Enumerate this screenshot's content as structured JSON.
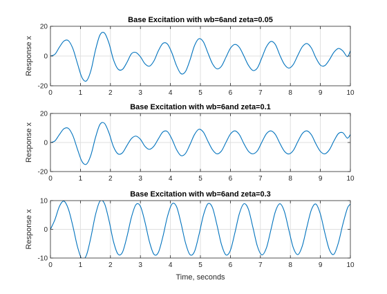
{
  "colors": {
    "line": "#0072BD",
    "axis": "#262626",
    "grid": "#dfdfdf",
    "background": "#ffffff"
  },
  "xlabel": "Time, seconds",
  "chart_data": [
    {
      "type": "line",
      "title": "Base Excitation with wb=6and zeta=0.05",
      "xlabel": "",
      "ylabel": "Response x",
      "xlim": [
        0,
        10
      ],
      "ylim": [
        -20,
        20
      ],
      "xticks": [
        0,
        1,
        2,
        3,
        4,
        5,
        6,
        7,
        8,
        9,
        10
      ],
      "yticks": [
        -20,
        0,
        20
      ],
      "grid": true,
      "series": [
        {
          "x": [
            0,
            0.15,
            0.3,
            0.45,
            0.6,
            0.75,
            0.9,
            1.05,
            1.2,
            1.35,
            1.5,
            1.65,
            1.8,
            1.95,
            2.1,
            2.25,
            2.4,
            2.55,
            2.7,
            2.85,
            3.0,
            3.15,
            3.3,
            3.45,
            3.6,
            3.75,
            3.9,
            4.05,
            4.2,
            4.35,
            4.5,
            4.65,
            4.8,
            4.95,
            5.1,
            5.25,
            5.4,
            5.55,
            5.7,
            5.85,
            6.0,
            6.15,
            6.3,
            6.45,
            6.6,
            6.75,
            6.9,
            7.05,
            7.2,
            7.35,
            7.5,
            7.65,
            7.8,
            7.95,
            8.1,
            8.25,
            8.4,
            8.55,
            8.7,
            8.85,
            9.0,
            9.15,
            9.3,
            9.45,
            9.6,
            9.75,
            9.9,
            10.0
          ],
          "y": [
            0,
            1.2,
            6,
            10.1,
            10.3,
            4.9,
            -5,
            -14.4,
            -16.7,
            -9.7,
            3.9,
            14.1,
            15.5,
            8.7,
            -2.4,
            -8.7,
            -9.0,
            -4.3,
            1.5,
            2.4,
            -0.5,
            -5.2,
            -6.8,
            -3.3,
            3.6,
            8.5,
            8.1,
            2.1,
            -6.3,
            -11.8,
            -10.5,
            -2.8,
            6.8,
            11.6,
            9.5,
            2.1,
            -5.1,
            -8.6,
            -6.9,
            -0.9,
            5.2,
            7.8,
            5.8,
            0,
            -6.2,
            -9.7,
            -8.0,
            -1.1,
            6.2,
            9.8,
            7.7,
            0.5,
            -5.6,
            -8.1,
            -5.6,
            0.6,
            6.3,
            8.4,
            5.4,
            -1.2,
            -6.1,
            -6.4,
            -2.5,
            2.5,
            5.1,
            3.4,
            -0.4,
            3.5
          ]
        }
      ]
    },
    {
      "type": "line",
      "title": "Base Excitation with wb=6and zeta=0.1",
      "xlabel": "",
      "ylabel": "Response x",
      "xlim": [
        0,
        10
      ],
      "ylim": [
        -20,
        20
      ],
      "xticks": [
        0,
        1,
        2,
        3,
        4,
        5,
        6,
        7,
        8,
        9,
        10
      ],
      "yticks": [
        -20,
        0,
        20
      ],
      "grid": true,
      "series": [
        {
          "x": [
            0,
            0.15,
            0.3,
            0.45,
            0.6,
            0.75,
            0.9,
            1.05,
            1.2,
            1.35,
            1.5,
            1.65,
            1.8,
            1.95,
            2.1,
            2.25,
            2.4,
            2.55,
            2.7,
            2.85,
            3.0,
            3.15,
            3.3,
            3.45,
            3.6,
            3.75,
            3.9,
            4.05,
            4.2,
            4.35,
            4.5,
            4.65,
            4.8,
            4.95,
            5.1,
            5.25,
            5.4,
            5.55,
            5.7,
            5.85,
            6.0,
            6.15,
            6.3,
            6.45,
            6.6,
            6.75,
            6.9,
            7.05,
            7.2,
            7.35,
            7.5,
            7.65,
            7.8,
            7.95,
            8.1,
            8.25,
            8.4,
            8.55,
            8.7,
            8.85,
            9.0,
            9.15,
            9.3,
            9.45,
            9.6,
            9.75,
            9.9,
            10.0
          ],
          "y": [
            0,
            1.1,
            5.5,
            9.5,
            9.7,
            4.6,
            -4.6,
            -13,
            -14.9,
            -8.6,
            3.3,
            12.4,
            13.2,
            6.7,
            -2.8,
            -7.8,
            -7.1,
            -2.1,
            2.7,
            4.4,
            2.2,
            -2.6,
            -4.7,
            -2.5,
            2.6,
            7.3,
            7.5,
            2.4,
            -4.7,
            -9.0,
            -7.6,
            -1.5,
            5.4,
            9.1,
            7.1,
            0.9,
            -4.9,
            -7.8,
            -5.9,
            0,
            5.8,
            8.0,
            5.4,
            -0.8,
            -6.0,
            -7.8,
            -5.7,
            0.3,
            6.0,
            8.0,
            5.5,
            -0.6,
            -6.0,
            -7.9,
            -5.4,
            0.7,
            6.2,
            8.0,
            5.3,
            -0.9,
            -6.1,
            -7.8,
            -5.0,
            1.0,
            6.1,
            6.7,
            3.0,
            5.5
          ]
        }
      ]
    },
    {
      "type": "line",
      "title": "Base Excitation with wb=6and zeta=0.3",
      "xlabel": "Time, seconds",
      "ylabel": "Response x",
      "xlim": [
        0,
        10
      ],
      "ylim": [
        -10,
        10
      ],
      "xticks": [
        0,
        1,
        2,
        3,
        4,
        5,
        6,
        7,
        8,
        9,
        10
      ],
      "yticks": [
        -10,
        0,
        10
      ],
      "grid": true,
      "series": [
        {
          "x": [
            0,
            0.15,
            0.3,
            0.45,
            0.6,
            0.75,
            0.9,
            1.05,
            1.2,
            1.35,
            1.5,
            1.65,
            1.8,
            1.95,
            2.1,
            2.25,
            2.4,
            2.55,
            2.7,
            2.85,
            3.0,
            3.15,
            3.3,
            3.45,
            3.6,
            3.75,
            3.9,
            4.05,
            4.2,
            4.35,
            4.5,
            4.65,
            4.8,
            4.95,
            5.1,
            5.25,
            5.4,
            5.55,
            5.7,
            5.85,
            6.0,
            6.15,
            6.3,
            6.45,
            6.6,
            6.75,
            6.9,
            7.05,
            7.2,
            7.35,
            7.5,
            7.65,
            7.8,
            7.95,
            8.1,
            8.25,
            8.4,
            8.55,
            8.7,
            8.85,
            9.0,
            9.15,
            9.3,
            9.45,
            9.6,
            9.75,
            9.9,
            10.0
          ],
          "y": [
            0,
            3.4,
            8.0,
            9.8,
            7.0,
            1.0,
            -6.0,
            -10.4,
            -9.0,
            -2.7,
            5.0,
            9.8,
            9.0,
            3.2,
            -4.2,
            -8.6,
            -8.0,
            -2.6,
            4.2,
            8.6,
            8.0,
            2.6,
            -4.3,
            -8.7,
            -8.0,
            -2.5,
            4.4,
            8.8,
            8.0,
            2.3,
            -4.6,
            -8.8,
            -7.8,
            -2.0,
            4.9,
            8.9,
            7.6,
            1.6,
            -5.2,
            -8.9,
            -7.3,
            -1.2,
            5.5,
            8.9,
            7.0,
            0.7,
            -5.9,
            -8.9,
            -6.5,
            -0.2,
            6.2,
            8.9,
            6.2,
            -0.3,
            -6.5,
            -8.8,
            -5.7,
            0.8,
            6.8,
            8.8,
            5.3,
            -1.3,
            -7.1,
            -8.7,
            -4.7,
            1.8,
            7.3,
            8.8
          ]
        }
      ]
    }
  ]
}
